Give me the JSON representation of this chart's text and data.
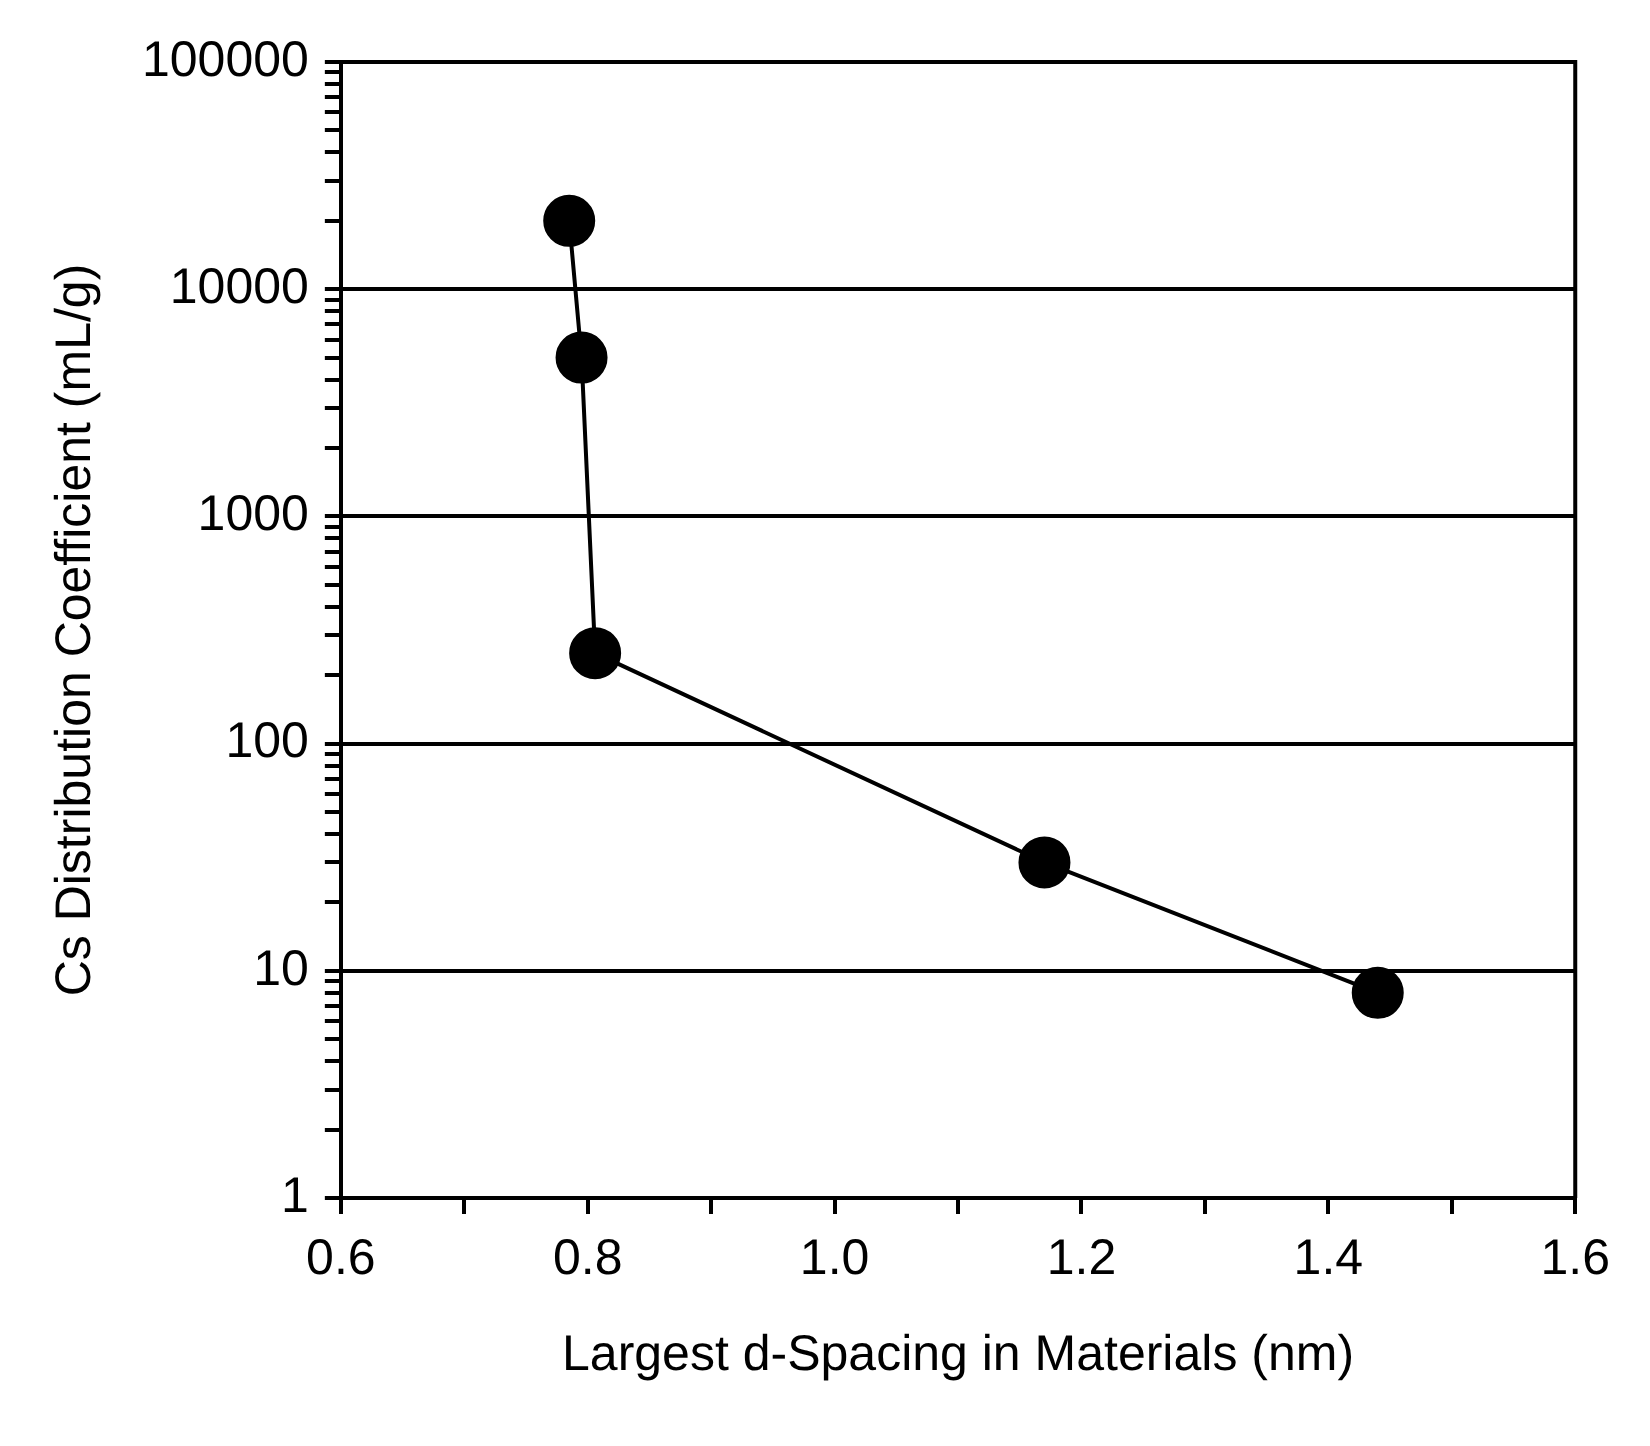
{
  "chart_data": {
    "type": "line",
    "xlabel": "Largest d-Spacing in Materials (nm)",
    "ylabel": "Cs Distribution Coefficient (mL/g)",
    "x": [
      0.785,
      0.795,
      0.806,
      1.17,
      1.44
    ],
    "series": [
      {
        "color": "#000000",
        "values": [
          20000,
          5000,
          250,
          30,
          8
        ]
      }
    ],
    "xlim": [
      0.6,
      1.6
    ],
    "xticks": [
      0.6,
      {
        "value": 0.7,
        "label": null
      },
      0.8,
      {
        "value": 0.9,
        "label": null
      },
      "1.0",
      {
        "value": 1.1,
        "label": null
      },
      1.2,
      {
        "value": 1.3,
        "label": null
      },
      1.4,
      {
        "value": 1.5,
        "label": null
      },
      1.6
    ],
    "ylim": [
      1,
      100000
    ],
    "yticks": [
      1,
      {
        "value": 2,
        "label": null
      },
      {
        "value": 3,
        "label": null
      },
      {
        "value": 4,
        "label": null
      },
      {
        "value": 5,
        "label": null
      },
      {
        "value": 6,
        "label": null
      },
      {
        "value": 7,
        "label": null
      },
      {
        "value": 8,
        "label": null
      },
      {
        "value": 9,
        "label": null
      },
      10,
      {
        "value": 20,
        "label": null
      },
      {
        "value": 30,
        "label": null
      },
      {
        "value": 40,
        "label": null
      },
      {
        "value": 50,
        "label": null
      },
      {
        "value": 60,
        "label": null
      },
      {
        "value": 70,
        "label": null
      },
      {
        "value": 80,
        "label": null
      },
      {
        "value": 90,
        "label": null
      },
      100,
      {
        "value": 200,
        "label": null
      },
      {
        "value": 300,
        "label": null
      },
      {
        "value": 400,
        "label": null
      },
      {
        "value": 500,
        "label": null
      },
      {
        "value": 600,
        "label": null
      },
      {
        "value": 700,
        "label": null
      },
      {
        "value": 800,
        "label": null
      },
      {
        "value": 900,
        "label": null
      },
      1000,
      {
        "value": 2000,
        "label": null
      },
      {
        "value": 3000,
        "label": null
      },
      {
        "value": 4000,
        "label": null
      },
      {
        "value": 5000,
        "label": null
      },
      {
        "value": 6000,
        "label": null
      },
      {
        "value": 7000,
        "label": null
      },
      {
        "value": 8000,
        "label": null
      },
      {
        "value": 9000,
        "label": null
      },
      10000,
      {
        "value": 20000,
        "label": null
      },
      {
        "value": 30000,
        "label": null
      },
      {
        "value": 40000,
        "label": null
      },
      {
        "value": 50000,
        "label": null
      },
      {
        "value": 60000,
        "label": null
      },
      {
        "value": 70000,
        "label": null
      },
      {
        "value": 80000,
        "label": null
      },
      {
        "value": 90000,
        "label": null
      },
      100000
    ],
    "log": "y",
    "grid": "y",
    "marker": "circle",
    "line_style": "solid",
    "legend": false
  }
}
